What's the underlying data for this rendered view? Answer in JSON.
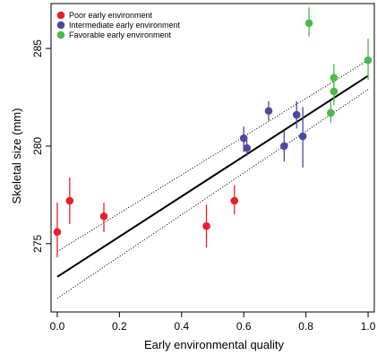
{
  "chart_data": {
    "type": "scatter",
    "title": "",
    "xlabel": "Early environmental quality",
    "ylabel": "Skeletal size (mm)",
    "xlim": [
      -0.02,
      1.02
    ],
    "ylim": [
      271.5,
      287.3
    ],
    "xticks": [
      0.0,
      0.2,
      0.4,
      0.6,
      0.8,
      1.0
    ],
    "xtick_labels": [
      "0.0",
      "0.2",
      "0.4",
      "0.6",
      "0.8",
      "1.0"
    ],
    "yticks": [
      275,
      280,
      285
    ],
    "ytick_labels": [
      "275",
      "280",
      "285"
    ],
    "grid": false,
    "legend_position": "top-left",
    "series": [
      {
        "name": "Poor early environment",
        "color": "#e8202a",
        "points": [
          {
            "x": 0.0,
            "y": 275.6,
            "lo": 274.3,
            "hi": 277.1
          },
          {
            "x": 0.04,
            "y": 277.2,
            "lo": 276.0,
            "hi": 278.4
          },
          {
            "x": 0.15,
            "y": 276.4,
            "lo": 275.6,
            "hi": 277.1
          },
          {
            "x": 0.48,
            "y": 275.9,
            "lo": 274.8,
            "hi": 277.0
          },
          {
            "x": 0.57,
            "y": 277.2,
            "lo": 276.5,
            "hi": 278.0
          }
        ]
      },
      {
        "name": "Intermediate early environment",
        "color": "#4a4a9e",
        "points": [
          {
            "x": 0.6,
            "y": 280.4,
            "lo": 279.7,
            "hi": 281.0
          },
          {
            "x": 0.61,
            "y": 279.9,
            "lo": 279.5,
            "hi": 280.3
          },
          {
            "x": 0.68,
            "y": 281.8,
            "lo": 281.3,
            "hi": 282.3
          },
          {
            "x": 0.73,
            "y": 280.0,
            "lo": 279.2,
            "hi": 280.8
          },
          {
            "x": 0.77,
            "y": 281.6,
            "lo": 280.9,
            "hi": 282.3
          },
          {
            "x": 0.79,
            "y": 280.5,
            "lo": 278.9,
            "hi": 282.0
          }
        ]
      },
      {
        "name": "Favorable early environment",
        "color": "#4cb94a",
        "points": [
          {
            "x": 0.81,
            "y": 286.3,
            "lo": 285.6,
            "hi": 287.1
          },
          {
            "x": 0.88,
            "y": 281.7,
            "lo": 281.2,
            "hi": 282.3
          },
          {
            "x": 0.89,
            "y": 282.8,
            "lo": 282.1,
            "hi": 283.5
          },
          {
            "x": 0.89,
            "y": 283.5,
            "lo": 282.9,
            "hi": 284.2
          },
          {
            "x": 1.0,
            "y": 284.4,
            "lo": 283.4,
            "hi": 285.5
          }
        ]
      }
    ],
    "fit_line": {
      "x": [
        0.0,
        1.0
      ],
      "y": [
        273.3,
        283.6
      ]
    },
    "ci_lower": {
      "x": [
        0.0,
        1.0
      ],
      "y": [
        272.2,
        282.9
      ]
    },
    "ci_upper": {
      "x": [
        0.0,
        1.0
      ],
      "y": [
        274.6,
        284.4
      ]
    }
  }
}
